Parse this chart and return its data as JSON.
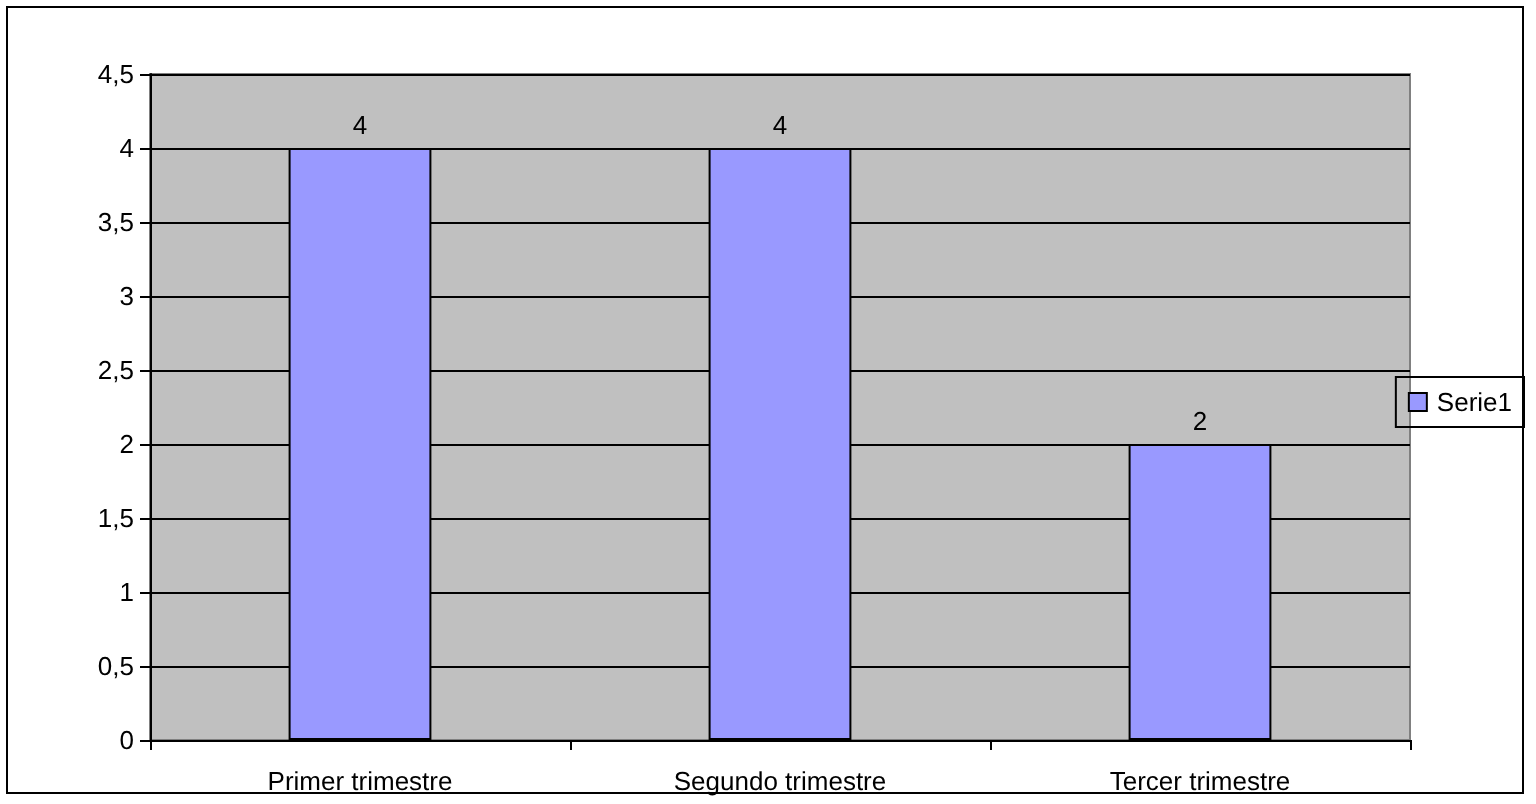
{
  "chart_data": {
    "type": "bar",
    "categories": [
      "Primer trimestre",
      "Segundo trimestre",
      "Tercer trimestre"
    ],
    "series": [
      {
        "name": "Serie1",
        "color": "#9999ff",
        "values": [
          4,
          4,
          2
        ]
      }
    ],
    "ylim": [
      0,
      4.5
    ],
    "yticks": [
      0,
      {
        "value": 0.5,
        "label": "0,5"
      },
      1,
      {
        "value": 1.5,
        "label": "1,5"
      },
      2,
      {
        "value": 2.5,
        "label": "2,5"
      },
      3,
      {
        "value": 3.5,
        "label": "3,5"
      },
      4,
      {
        "value": 4.5,
        "label": "4,5"
      }
    ],
    "grid": "y",
    "legend": "right",
    "data_labels": true
  }
}
